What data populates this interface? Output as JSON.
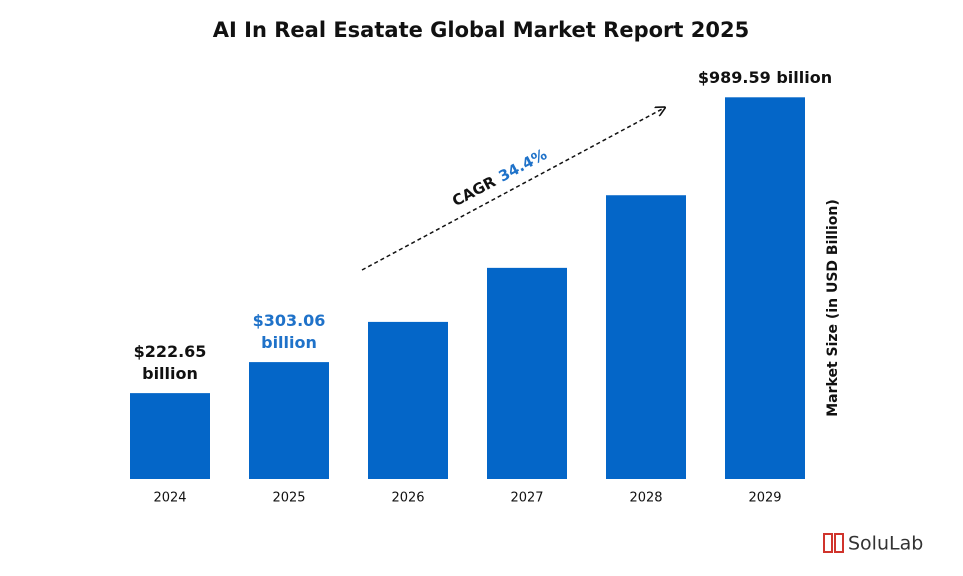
{
  "chart_data": {
    "type": "bar",
    "title": "AI In Real Esatate Global Market Report 2025",
    "y_label": "Market Size (in USD Billion)",
    "categories": [
      "2024",
      "2025",
      "2026",
      "2027",
      "2028",
      "2029"
    ],
    "values": [
      222.65,
      303.06,
      407.3,
      547.4,
      735.7,
      989.59
    ],
    "value_labels": [
      "$222.65 billion",
      "$303.06 billion",
      null,
      null,
      null,
      "$989.59 billion"
    ],
    "color": "#0466c8",
    "ylim": [
      0,
      1050
    ],
    "annotation": {
      "label": "CAGR",
      "value": "34.4%"
    },
    "brand": "SoluLab"
  }
}
